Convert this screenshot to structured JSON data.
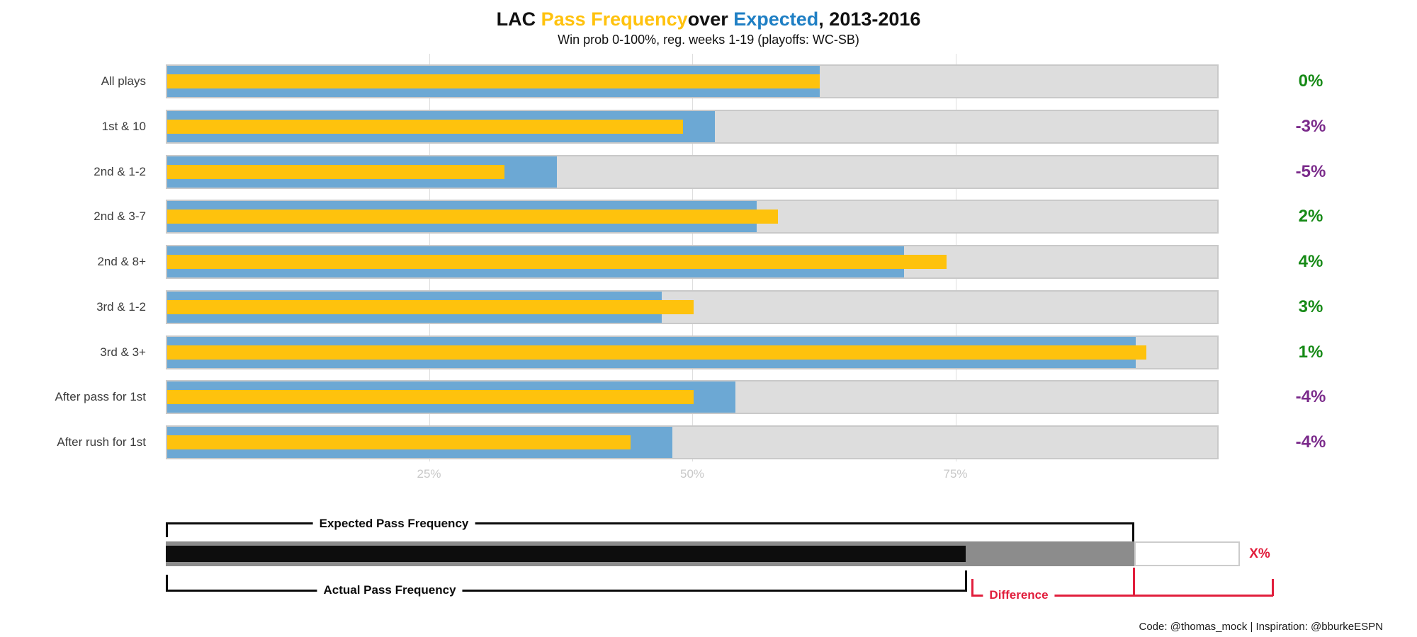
{
  "title": {
    "segments": [
      {
        "text": "LAC ",
        "color": "#111111"
      },
      {
        "text": "Pass Frequency",
        "color": "#FFC20E"
      },
      {
        "text": "over ",
        "color": "#111111"
      },
      {
        "text": "Expected",
        "color": "#1F7FC4"
      },
      {
        "text": ", 2013-2016",
        "color": "#111111"
      }
    ]
  },
  "subtitle": "Win prob 0-100%, reg. weeks 1-19 (playoffs: WC-SB)",
  "chart_data": {
    "type": "bar",
    "orientation": "horizontal",
    "title": "LAC Pass Frequency over Expected, 2013-2016",
    "subtitle": "Win prob 0-100%, reg. weeks 1-19 (playoffs: WC-SB)",
    "categories": [
      "All plays",
      "1st & 10",
      "2nd & 1-2",
      "2nd & 3-7",
      "2nd & 8+",
      "3rd & 1-2",
      "3rd & 3+",
      "After pass for 1st",
      "After rush for 1st"
    ],
    "series": [
      {
        "name": "Expected Pass Frequency",
        "color": "#6CA8D4",
        "values": [
          62,
          52,
          37,
          56,
          70,
          47,
          92,
          54,
          48
        ]
      },
      {
        "name": "Actual Pass Frequency",
        "color": "#FEC20D",
        "values": [
          62,
          49,
          32,
          58,
          74,
          50,
          93,
          50,
          44
        ]
      }
    ],
    "difference_labels": [
      "0%",
      "-3%",
      "-5%",
      "2%",
      "4%",
      "3%",
      "1%",
      "-4%",
      "-4%"
    ],
    "difference_colors": {
      "positive": "#168A16",
      "negative": "#7B2B8B"
    },
    "x_ticks": [
      {
        "label": "25%",
        "value": 25
      },
      {
        "label": "50%",
        "value": 50
      },
      {
        "label": "75%",
        "value": 75
      }
    ],
    "xlim": [
      0,
      100
    ],
    "track_color": "#dddddd",
    "grid": "vertical-light"
  },
  "legend": {
    "expected_label": "Expected Pass Frequency",
    "actual_label": "Actual Pass Frequency",
    "difference_label": "Difference",
    "x_pct_label": "X%",
    "demo": {
      "actual_pct": 76,
      "expected_pct": 92,
      "panel_end_pct": 102
    },
    "colors": {
      "actual": "#0d0d0d",
      "expected": "#8c8c8c",
      "panel_border": "#cccccc",
      "difference": "#E11E3C"
    }
  },
  "footer": {
    "credit": "Code: @thomas_mock | Inspiration: @bburkeESPN"
  }
}
